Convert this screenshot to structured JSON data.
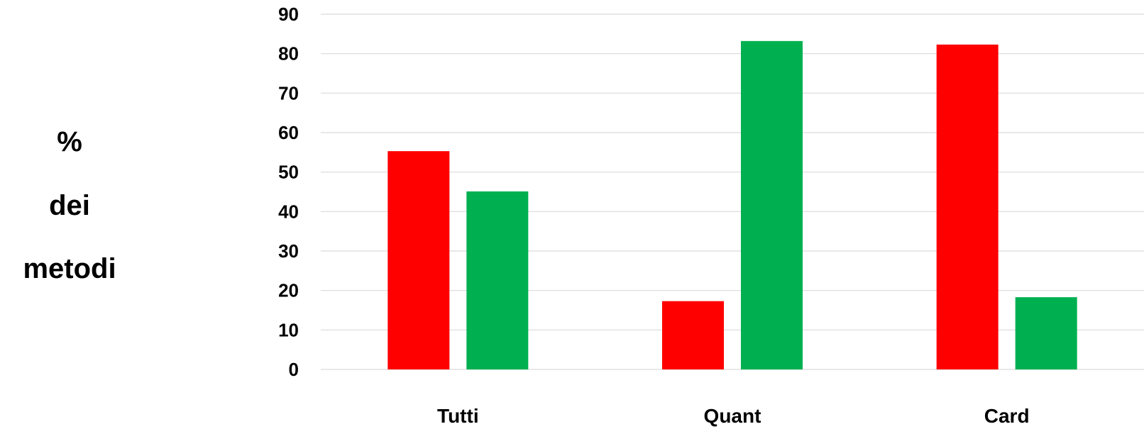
{
  "chart_data": {
    "type": "bar",
    "title": "",
    "ylabel_lines": [
      "%",
      "dei",
      "metodi"
    ],
    "xlabel": "",
    "categories": [
      "Tutti",
      "Quant",
      "Card"
    ],
    "series": [
      {
        "color": "#ff0000",
        "values": [
          55.3,
          17.3,
          82.3
        ]
      },
      {
        "color": "#00b050",
        "values": [
          45.1,
          83.2,
          18.3
        ]
      }
    ],
    "ylim": [
      0,
      90
    ],
    "yticks": [
      "0",
      "10",
      "20",
      "30",
      "40",
      "50",
      "60",
      "70",
      "80",
      "90"
    ],
    "grid": true
  }
}
